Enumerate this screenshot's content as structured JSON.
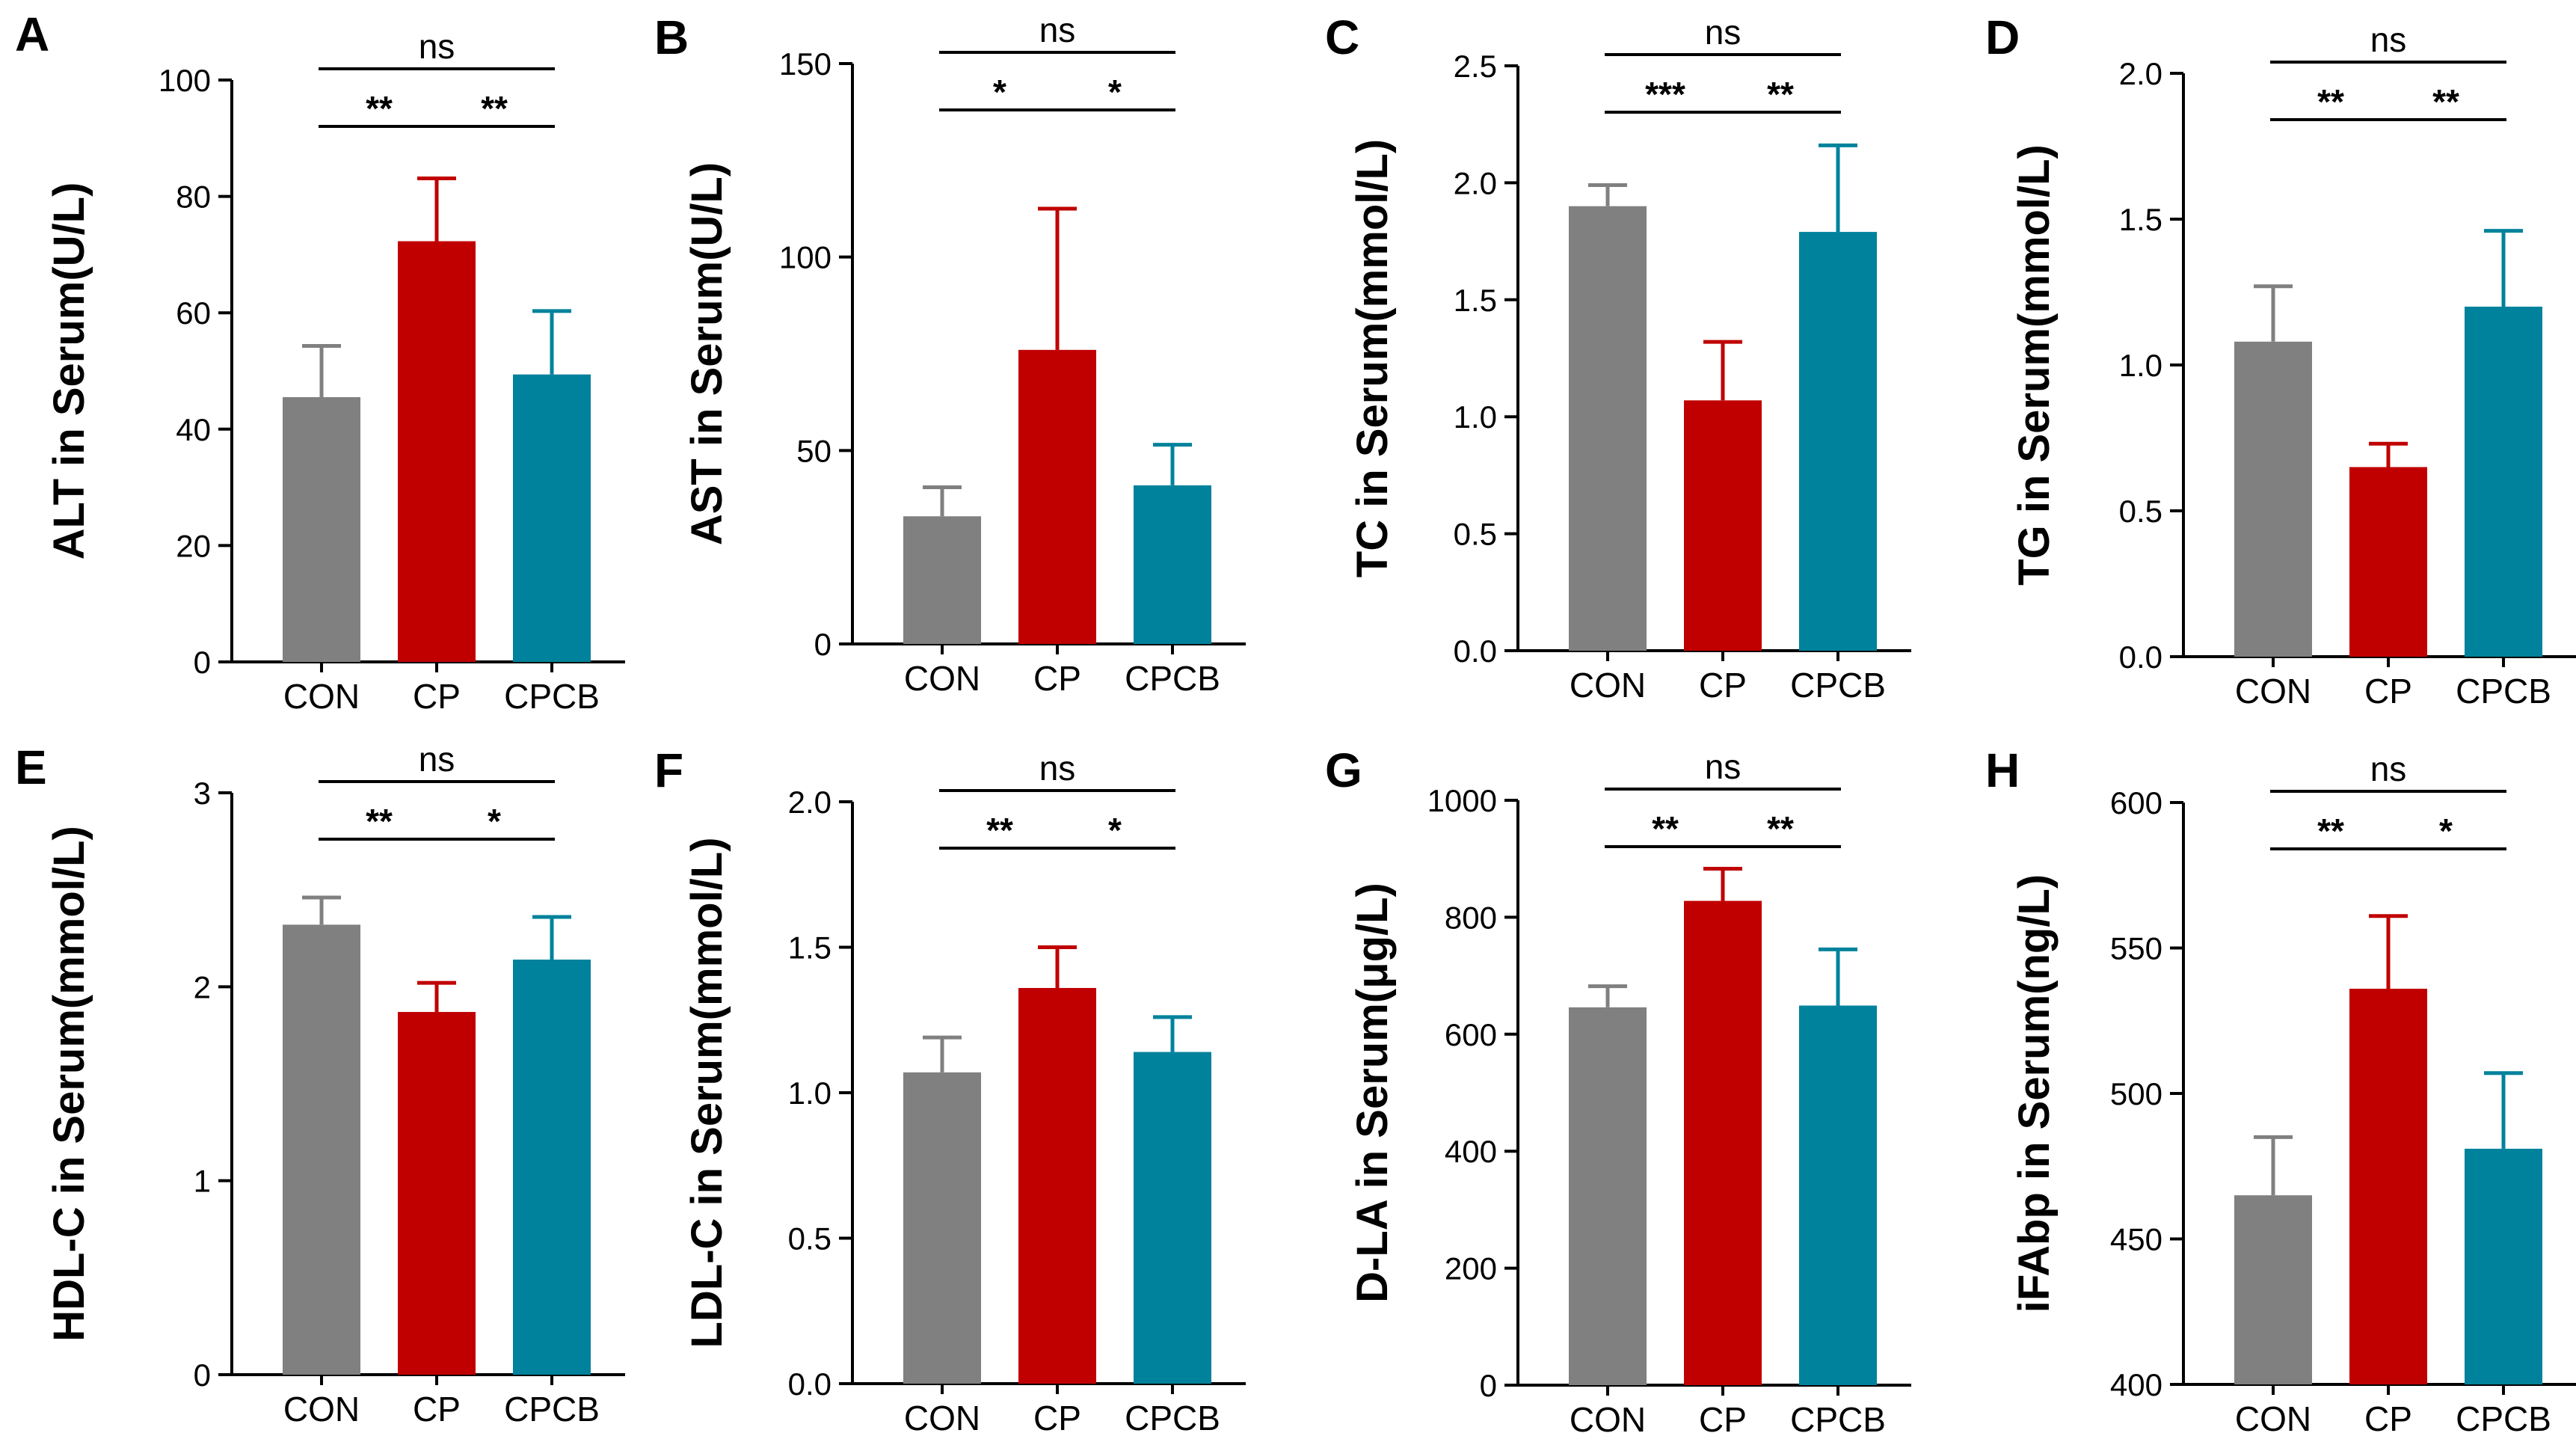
{
  "colors": {
    "CON": "#808080",
    "CP": "#c00000",
    "CPCB": "#00829c"
  },
  "chart_data": [
    {
      "panel": "A",
      "type": "bar",
      "categories": [
        "CON",
        "CP",
        "CPCB"
      ],
      "values": [
        45.5,
        72.3,
        49.4
      ],
      "errors": [
        8.8,
        10.8,
        10.9
      ],
      "ylabel": "ALT in Serum(U/L)",
      "ylim": [
        0,
        100
      ],
      "yticks": [
        0,
        20,
        40,
        60,
        80,
        100
      ],
      "ytick_labels": [
        "0",
        "20",
        "40",
        "60",
        "80",
        "100"
      ],
      "comparisons": [
        {
          "from": 0,
          "to": 1,
          "level": 2,
          "label": "**"
        },
        {
          "from": 1,
          "to": 2,
          "level": 2,
          "label": "**"
        },
        {
          "from": 0,
          "to": 2,
          "level": 1,
          "label": "ns"
        }
      ]
    },
    {
      "panel": "B",
      "type": "bar",
      "categories": [
        "CON",
        "CP",
        "CPCB"
      ],
      "values": [
        33,
        76,
        41
      ],
      "errors": [
        7.5,
        36.5,
        10.5
      ],
      "ylabel": "AST in Serum(U/L)",
      "ylim": [
        0,
        150
      ],
      "yticks": [
        0,
        50,
        100,
        150
      ],
      "ytick_labels": [
        "0",
        "50",
        "100",
        "150"
      ],
      "comparisons": [
        {
          "from": 0,
          "to": 1,
          "level": 2,
          "label": "*"
        },
        {
          "from": 1,
          "to": 2,
          "level": 2,
          "label": "*"
        },
        {
          "from": 0,
          "to": 2,
          "level": 1,
          "label": "ns"
        }
      ]
    },
    {
      "panel": "C",
      "type": "bar",
      "categories": [
        "CON",
        "CP",
        "CPCB"
      ],
      "values": [
        1.9,
        1.07,
        1.79
      ],
      "errors": [
        0.09,
        0.25,
        0.37
      ],
      "ylabel": "TC in Serum(mmol/L)",
      "ylim": [
        0,
        2.5
      ],
      "yticks": [
        0,
        0.5,
        1.0,
        1.5,
        2.0,
        2.5
      ],
      "ytick_labels": [
        "0.0",
        "0.5",
        "1.0",
        "1.5",
        "2.0",
        "2.5"
      ],
      "comparisons": [
        {
          "from": 0,
          "to": 1,
          "level": 2,
          "label": "***"
        },
        {
          "from": 1,
          "to": 2,
          "level": 2,
          "label": "**"
        },
        {
          "from": 0,
          "to": 2,
          "level": 1,
          "label": "ns"
        }
      ]
    },
    {
      "panel": "D",
      "type": "bar",
      "categories": [
        "CON",
        "CP",
        "CPCB"
      ],
      "values": [
        1.08,
        0.65,
        1.2
      ],
      "errors": [
        0.19,
        0.08,
        0.26
      ],
      "ylabel": "TG in Serum(mmol/L)",
      "ylim": [
        0,
        2.0
      ],
      "yticks": [
        0,
        0.5,
        1.0,
        1.5,
        2.0
      ],
      "ytick_labels": [
        "0.0",
        "0.5",
        "1.0",
        "1.5",
        "2.0"
      ],
      "comparisons": [
        {
          "from": 0,
          "to": 1,
          "level": 2,
          "label": "**"
        },
        {
          "from": 1,
          "to": 2,
          "level": 2,
          "label": "**"
        },
        {
          "from": 0,
          "to": 2,
          "level": 1,
          "label": "ns"
        }
      ]
    },
    {
      "panel": "E",
      "type": "bar",
      "categories": [
        "CON",
        "CP",
        "CPCB"
      ],
      "values": [
        2.32,
        1.87,
        2.14
      ],
      "errors": [
        0.14,
        0.15,
        0.22
      ],
      "ylabel": "HDL-C in Serum(mmol/L)",
      "ylim": [
        0,
        3
      ],
      "yticks": [
        0,
        1,
        2,
        3
      ],
      "ytick_labels": [
        "0",
        "1",
        "2",
        "3"
      ],
      "comparisons": [
        {
          "from": 0,
          "to": 1,
          "level": 2,
          "label": "**"
        },
        {
          "from": 1,
          "to": 2,
          "level": 2,
          "label": "*"
        },
        {
          "from": 0,
          "to": 2,
          "level": 1,
          "label": "ns"
        }
      ]
    },
    {
      "panel": "F",
      "type": "bar",
      "categories": [
        "CON",
        "CP",
        "CPCB"
      ],
      "values": [
        1.07,
        1.36,
        1.14
      ],
      "errors": [
        0.12,
        0.14,
        0.12
      ],
      "ylabel": "LDL-C in Serum(mmol/L)",
      "ylim": [
        0,
        2.0
      ],
      "yticks": [
        0,
        0.5,
        1.0,
        1.5,
        2.0
      ],
      "ytick_labels": [
        "0.0",
        "0.5",
        "1.0",
        "1.5",
        "2.0"
      ],
      "comparisons": [
        {
          "from": 0,
          "to": 1,
          "level": 2,
          "label": "**"
        },
        {
          "from": 1,
          "to": 2,
          "level": 2,
          "label": "*"
        },
        {
          "from": 0,
          "to": 2,
          "level": 1,
          "label": "ns"
        }
      ]
    },
    {
      "panel": "G",
      "type": "bar",
      "categories": [
        "CON",
        "CP",
        "CPCB"
      ],
      "values": [
        646,
        828,
        649
      ],
      "errors": [
        36,
        55,
        96
      ],
      "ylabel": "D-LA in Serum(μg/L)",
      "ylim": [
        0,
        1000
      ],
      "yticks": [
        0,
        200,
        400,
        600,
        800,
        1000
      ],
      "ytick_labels": [
        "0",
        "200",
        "400",
        "600",
        "800",
        "1000"
      ],
      "comparisons": [
        {
          "from": 0,
          "to": 1,
          "level": 2,
          "label": "**"
        },
        {
          "from": 1,
          "to": 2,
          "level": 2,
          "label": "**"
        },
        {
          "from": 0,
          "to": 2,
          "level": 1,
          "label": "ns"
        }
      ]
    },
    {
      "panel": "H",
      "type": "bar",
      "categories": [
        "CON",
        "CP",
        "CPCB"
      ],
      "values": [
        465,
        536,
        481
      ],
      "errors": [
        20,
        25,
        26
      ],
      "ylabel": "iFAbp in Serum(ng/L)",
      "ylim": [
        400,
        600
      ],
      "yticks": [
        400,
        450,
        500,
        550,
        600
      ],
      "ytick_labels": [
        "400",
        "450",
        "500",
        "550",
        "600"
      ],
      "comparisons": [
        {
          "from": 0,
          "to": 1,
          "level": 2,
          "label": "**"
        },
        {
          "from": 1,
          "to": 2,
          "level": 2,
          "label": "*"
        },
        {
          "from": 0,
          "to": 2,
          "level": 1,
          "label": "ns"
        }
      ]
    }
  ]
}
